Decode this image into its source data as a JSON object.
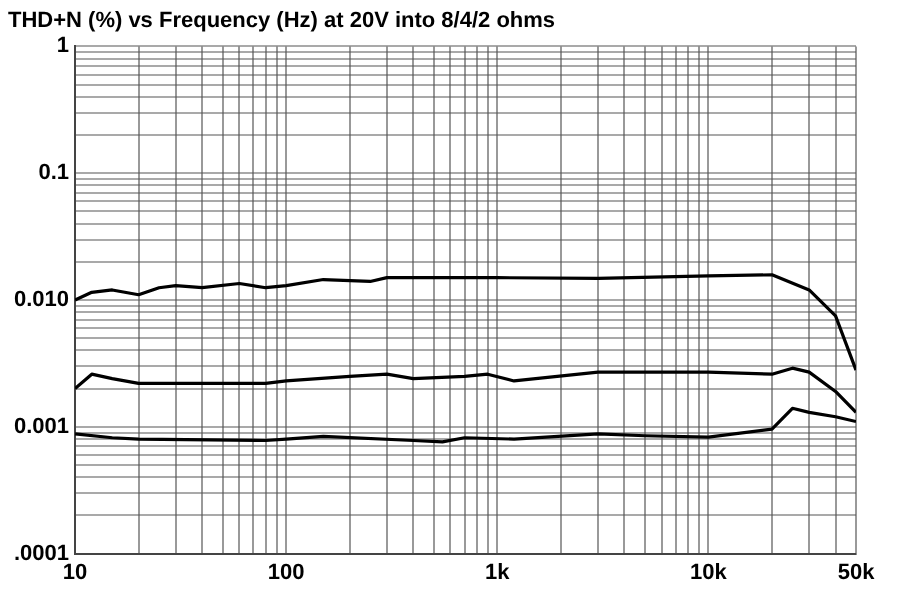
{
  "chart_data": {
    "type": "line",
    "title": "THD+N (%) vs Frequency (Hz) at 20V into 8/4/2 ohms",
    "log": "xy",
    "grid": true,
    "legend": false,
    "marker": "none",
    "line_style": "solid",
    "xlim": [
      10,
      50000
    ],
    "ylim": [
      0.0001,
      1
    ],
    "xticks": [
      10,
      {
        "value": 20,
        "label": null
      },
      {
        "value": 30,
        "label": null
      },
      {
        "value": 40,
        "label": null
      },
      {
        "value": 50,
        "label": null
      },
      {
        "value": 60,
        "label": null
      },
      {
        "value": 70,
        "label": null
      },
      {
        "value": 80,
        "label": null
      },
      {
        "value": 90,
        "label": null
      },
      100,
      {
        "value": 200,
        "label": null
      },
      {
        "value": 300,
        "label": null
      },
      {
        "value": 400,
        "label": null
      },
      {
        "value": 500,
        "label": null
      },
      {
        "value": 600,
        "label": null
      },
      {
        "value": 700,
        "label": null
      },
      {
        "value": 800,
        "label": null
      },
      {
        "value": 900,
        "label": null
      },
      {
        "value": 1000,
        "label": "1k"
      },
      {
        "value": 2000,
        "label": null
      },
      {
        "value": 3000,
        "label": null
      },
      {
        "value": 4000,
        "label": null
      },
      {
        "value": 5000,
        "label": null
      },
      {
        "value": 6000,
        "label": null
      },
      {
        "value": 7000,
        "label": null
      },
      {
        "value": 8000,
        "label": null
      },
      {
        "value": 9000,
        "label": null
      },
      {
        "value": 10000,
        "label": "10k"
      },
      {
        "value": 20000,
        "label": null
      },
      {
        "value": 30000,
        "label": null
      },
      {
        "value": 40000,
        "label": null
      },
      {
        "value": 50000,
        "label": "50k"
      }
    ],
    "yticks": [
      {
        "value": 0.0001,
        "label": ".0001"
      },
      {
        "value": 0.0002,
        "label": null
      },
      {
        "value": 0.0003,
        "label": null
      },
      {
        "value": 0.0004,
        "label": null
      },
      {
        "value": 0.0005,
        "label": null
      },
      {
        "value": 0.0006,
        "label": null
      },
      {
        "value": 0.0007,
        "label": null
      },
      {
        "value": 0.0008,
        "label": null
      },
      {
        "value": 0.0009,
        "label": null
      },
      0.001,
      {
        "value": 0.002,
        "label": null
      },
      {
        "value": 0.003,
        "label": null
      },
      {
        "value": 0.004,
        "label": null
      },
      {
        "value": 0.005,
        "label": null
      },
      {
        "value": 0.006,
        "label": null
      },
      {
        "value": 0.007,
        "label": null
      },
      {
        "value": 0.008,
        "label": null
      },
      {
        "value": 0.009,
        "label": null
      },
      {
        "value": 0.01,
        "label": "0.010"
      },
      {
        "value": 0.02,
        "label": null
      },
      {
        "value": 0.03,
        "label": null
      },
      {
        "value": 0.04,
        "label": null
      },
      {
        "value": 0.05,
        "label": null
      },
      {
        "value": 0.06,
        "label": null
      },
      {
        "value": 0.07,
        "label": null
      },
      {
        "value": 0.08,
        "label": null
      },
      {
        "value": 0.09,
        "label": null
      },
      0.1,
      {
        "value": 0.2,
        "label": null
      },
      {
        "value": 0.3,
        "label": null
      },
      {
        "value": 0.4,
        "label": null
      },
      {
        "value": 0.5,
        "label": null
      },
      {
        "value": 0.6,
        "label": null
      },
      {
        "value": 0.7,
        "label": null
      },
      {
        "value": 0.8,
        "label": null
      },
      {
        "value": 0.9,
        "label": null
      },
      1
    ],
    "series": [
      {
        "color": "#000000",
        "x": [
          10,
          12,
          15,
          20,
          25,
          30,
          40,
          60,
          80,
          100,
          150,
          250,
          300,
          1000,
          3000,
          10000,
          20000,
          30000,
          40000,
          50000
        ],
        "values": [
          0.01,
          0.0115,
          0.012,
          0.011,
          0.0125,
          0.013,
          0.0125,
          0.0135,
          0.0125,
          0.013,
          0.0145,
          0.014,
          0.015,
          0.015,
          0.0148,
          0.0155,
          0.0158,
          0.012,
          0.0075,
          0.0028
        ]
      },
      {
        "color": "#000000",
        "x": [
          10,
          12,
          15,
          20,
          50,
          80,
          100,
          200,
          300,
          400,
          700,
          900,
          1200,
          3000,
          10000,
          20000,
          25000,
          30000,
          40000,
          50000
        ],
        "values": [
          0.002,
          0.0026,
          0.0024,
          0.0022,
          0.0022,
          0.0022,
          0.0023,
          0.0025,
          0.0026,
          0.0024,
          0.0025,
          0.0026,
          0.0023,
          0.0027,
          0.0027,
          0.0026,
          0.0029,
          0.0027,
          0.0019,
          0.0013
        ]
      },
      {
        "color": "#000000",
        "x": [
          10,
          15,
          20,
          80,
          100,
          150,
          400,
          550,
          700,
          1200,
          3000,
          5000,
          10000,
          20000,
          25000,
          30000,
          40000,
          50000
        ],
        "values": [
          0.00088,
          0.00082,
          0.0008,
          0.00078,
          0.0008,
          0.00084,
          0.00078,
          0.00076,
          0.00082,
          0.0008,
          0.00088,
          0.00085,
          0.00083,
          0.00096,
          0.0014,
          0.0013,
          0.0012,
          0.0011
        ]
      }
    ]
  }
}
